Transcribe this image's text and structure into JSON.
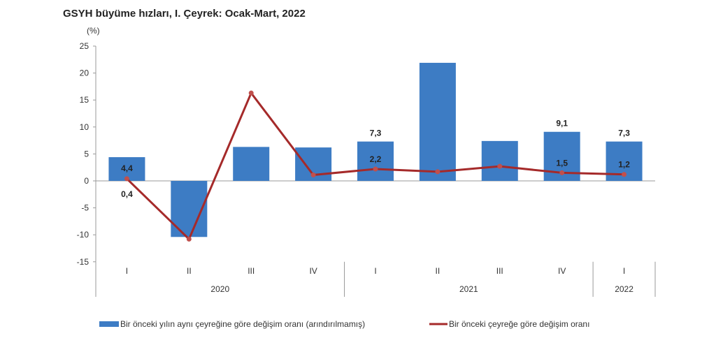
{
  "chart_data": {
    "type": "bar+line",
    "title": "GSYH büyüme hızları, I. Çeyrek: Ocak-Mart, 2022",
    "ylabel": "(%)",
    "ylim": [
      -15,
      25
    ],
    "yticks": [
      25,
      20,
      15,
      10,
      5,
      0,
      -5,
      -10,
      -15
    ],
    "categories": [
      "I",
      "II",
      "III",
      "IV",
      "I",
      "II",
      "III",
      "IV",
      "I"
    ],
    "year_groups": [
      {
        "label": "2020",
        "count": 4
      },
      {
        "label": "2021",
        "count": 4
      },
      {
        "label": "2022",
        "count": 1
      }
    ],
    "series": [
      {
        "name": "Bir önceki yılın aynı çeyreğine göre değişim oranı (arındırılmamış)",
        "type": "bar",
        "color": "#3d7cc4",
        "values": [
          4.4,
          -10.4,
          6.3,
          6.2,
          7.3,
          21.9,
          7.4,
          9.1,
          7.3
        ],
        "labels": [
          "4,4",
          null,
          null,
          null,
          "7,3",
          null,
          null,
          "9,1",
          "7,3"
        ]
      },
      {
        "name": "Bir önceki çeyreğe göre değişim oranı",
        "type": "line",
        "color": "#a52a2a",
        "values": [
          0.4,
          -10.8,
          16.3,
          1.1,
          2.2,
          1.7,
          2.7,
          1.5,
          1.2
        ],
        "labels": [
          "0,4",
          null,
          null,
          null,
          "2,2",
          null,
          null,
          "1,5",
          "1,2"
        ]
      }
    ],
    "legend": "bottom"
  }
}
